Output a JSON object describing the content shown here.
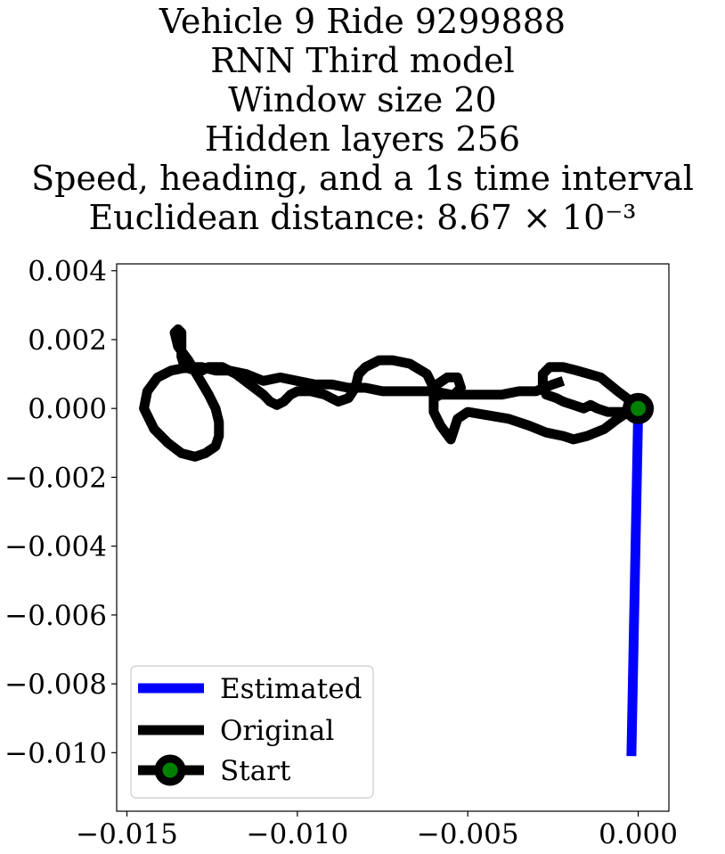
{
  "chart_data": {
    "type": "line",
    "title_lines": [
      "Vehicle 9 Ride 9299888",
      "RNN Third model",
      "Window size 20",
      "Hidden layers 256",
      "Speed, heading, and a 1s time interval",
      "Euclidean distance: 8.67 × 10⁻³"
    ],
    "xlabel": "",
    "ylabel": "",
    "xlim": [
      -0.0153,
      0.0009
    ],
    "ylim": [
      -0.0117,
      0.0042
    ],
    "x_ticks": [
      -0.015,
      -0.01,
      -0.005,
      0.0
    ],
    "x_tick_labels": [
      "−0.015",
      "−0.010",
      "−0.005",
      "0.000"
    ],
    "y_ticks": [
      0.004,
      0.002,
      0.0,
      -0.002,
      -0.004,
      -0.006,
      -0.008,
      -0.01
    ],
    "y_tick_labels": [
      "0.004",
      "0.002",
      "0.000",
      "−0.002",
      "−0.004",
      "−0.006",
      "−0.008",
      "−0.010"
    ],
    "grid": false,
    "legend_position": "lower-left",
    "series": [
      {
        "name": "Estimated",
        "color": "#0000ff",
        "x": [
          0.0,
          -0.0002
        ],
        "y": [
          0.0,
          -0.0101
        ]
      },
      {
        "name": "Original",
        "color": "#000000",
        "x": [
          0.0,
          -0.0004,
          -0.0009,
          -0.0012,
          -0.0014,
          -0.0016,
          -0.0019,
          -0.0022,
          -0.0024,
          -0.0027,
          -0.0028,
          -0.0028,
          -0.0026,
          -0.0022,
          -0.0018,
          -0.0011,
          -0.0006,
          -0.0002,
          0.0,
          -0.0003,
          -0.0006,
          -0.001,
          -0.0015,
          -0.0019,
          -0.0022,
          -0.0027,
          -0.0032,
          -0.0038,
          -0.0044,
          -0.005,
          -0.0053,
          -0.0054,
          -0.0055,
          -0.0058,
          -0.006,
          -0.006,
          -0.0059,
          -0.0056,
          -0.0053,
          -0.0052,
          -0.0054,
          -0.0056,
          -0.0058,
          -0.006,
          -0.006,
          -0.0062,
          -0.0067,
          -0.0072,
          -0.0076,
          -0.008,
          -0.0082,
          -0.0083,
          -0.0085,
          -0.0088,
          -0.009,
          -0.0092,
          -0.0096,
          -0.01,
          -0.0102,
          -0.0104,
          -0.0106,
          -0.0108,
          -0.011,
          -0.0114,
          -0.0118,
          -0.0122,
          -0.0126,
          -0.0128,
          -0.013,
          -0.0133,
          -0.0134,
          -0.0134,
          -0.0134,
          -0.0135,
          -0.0136,
          -0.0135,
          -0.0132,
          -0.0129,
          -0.0126,
          -0.0124,
          -0.0123,
          -0.0123,
          -0.0124,
          -0.0127,
          -0.013,
          -0.0134,
          -0.0138,
          -0.0142,
          -0.0145,
          -0.0144,
          -0.0141,
          -0.0137,
          -0.0132,
          -0.0128,
          -0.0124,
          -0.012,
          -0.0115,
          -0.011,
          -0.0105,
          -0.01,
          -0.0095,
          -0.009,
          -0.0085,
          -0.008,
          -0.0075,
          -0.007,
          -0.0065,
          -0.006,
          -0.0055,
          -0.005,
          -0.0045,
          -0.004,
          -0.0035,
          -0.003,
          -0.0025,
          -0.0022
        ],
        "y": [
          0.0,
          -0.0001,
          -0.0001,
          0.0,
          0.0001,
          0.0,
          0.0001,
          0.0002,
          0.0003,
          0.0004,
          0.0007,
          0.001,
          0.0012,
          0.0012,
          0.0011,
          0.0009,
          0.0005,
          0.0002,
          0.0,
          -0.0001,
          -0.0003,
          -0.0006,
          -0.0008,
          -0.0009,
          -0.0008,
          -0.0007,
          -0.0005,
          -0.0003,
          -0.0002,
          -0.0001,
          -0.0003,
          -0.0006,
          -0.0009,
          -0.0005,
          -0.0001,
          0.0003,
          0.0007,
          0.0009,
          0.0009,
          0.0006,
          0.0004,
          0.0004,
          0.0004,
          0.0003,
          0.0006,
          0.001,
          0.0013,
          0.0014,
          0.0014,
          0.0012,
          0.001,
          0.0006,
          0.0003,
          0.0002,
          0.0003,
          0.0004,
          0.0005,
          0.0005,
          0.0004,
          0.0002,
          0.0001,
          0.0002,
          0.0004,
          0.0007,
          0.001,
          0.0012,
          0.0012,
          0.0011,
          0.0011,
          0.0012,
          0.0015,
          0.0019,
          0.0022,
          0.0023,
          0.0022,
          0.0018,
          0.0014,
          0.0009,
          0.0004,
          0.0,
          -0.0004,
          -0.0008,
          -0.0011,
          -0.0013,
          -0.0014,
          -0.0013,
          -0.001,
          -0.0006,
          0.0,
          0.0005,
          0.0009,
          0.0011,
          0.0012,
          0.0012,
          0.0011,
          0.0011,
          0.001,
          0.0008,
          0.0009,
          0.0008,
          0.0007,
          0.0007,
          0.0006,
          0.0006,
          0.0005,
          0.0005,
          0.0005,
          0.0005,
          0.0004,
          0.0004,
          0.0004,
          0.0004,
          0.0005,
          0.0005,
          0.0007,
          0.0008
        ]
      }
    ],
    "start_marker": {
      "name": "Start",
      "x": 0.0,
      "y": 0.0,
      "edge_color": "#000000",
      "face_color": "#008000"
    }
  }
}
